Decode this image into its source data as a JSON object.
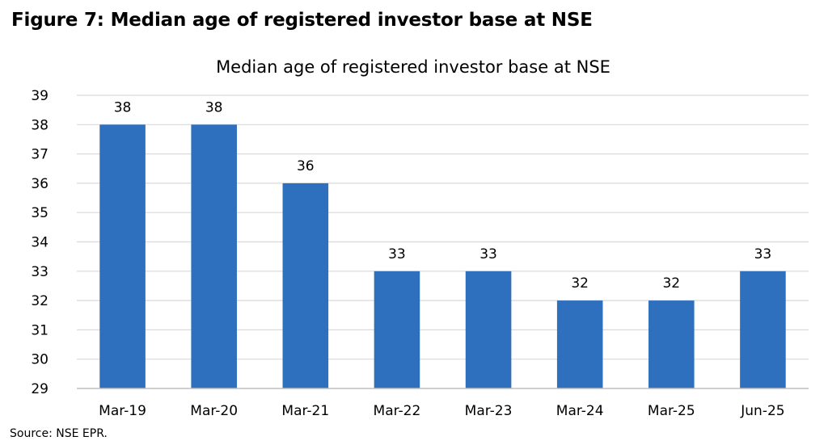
{
  "heading": "Figure 7: Median age of registered investor base at NSE",
  "source": "Source: NSE EPR.",
  "colors": {
    "bar": "#2E6FBE",
    "grid": "#D9D9D9",
    "axis": "#BFBFBF",
    "text": "#000000"
  },
  "chart_data": {
    "type": "bar",
    "title": "Median age of registered investor base at NSE",
    "xlabel": "",
    "ylabel": "",
    "categories": [
      "Mar-19",
      "Mar-20",
      "Mar-21",
      "Mar-22",
      "Mar-23",
      "Mar-24",
      "Mar-25",
      "Jun-25"
    ],
    "values": [
      38,
      38,
      36,
      33,
      33,
      32,
      32,
      33
    ],
    "ylim": [
      29,
      39
    ],
    "yticks": [
      29,
      30,
      31,
      32,
      33,
      34,
      35,
      36,
      37,
      38,
      39
    ],
    "grid": true,
    "legend": "none",
    "data_labels": true
  }
}
